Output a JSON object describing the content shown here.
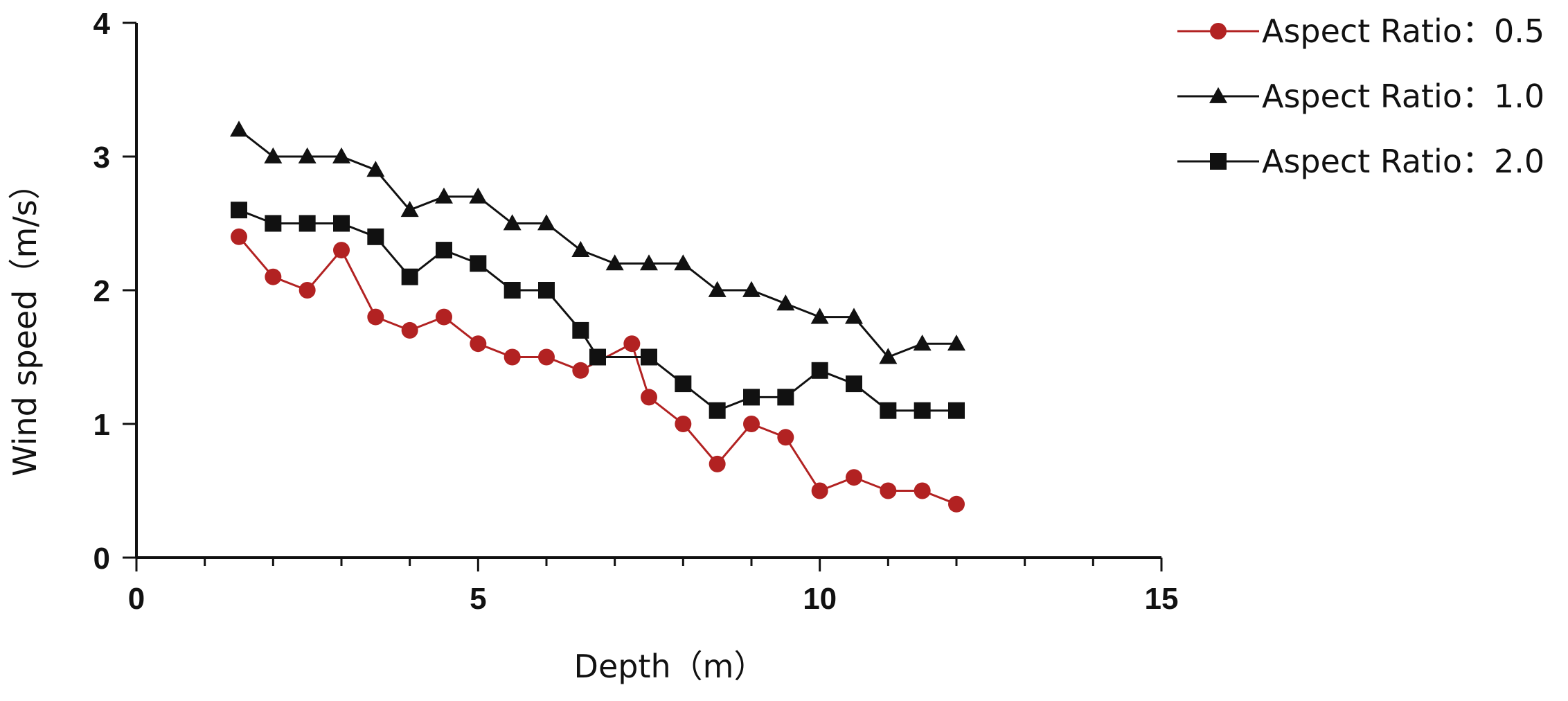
{
  "chart_data": {
    "type": "line",
    "title": "",
    "xlabel": "Depth（m）",
    "ylabel": "Wind speed（m/s）",
    "xlim": [
      0,
      15
    ],
    "ylim": [
      0,
      4
    ],
    "xticks": [
      0,
      5,
      10,
      15
    ],
    "yticks": [
      0,
      1,
      2,
      3,
      4
    ],
    "x_minor_step": 1,
    "grid": false,
    "legend_position": "top-right",
    "series": [
      {
        "name": "Aspect Ratio：0.5",
        "marker": "circle",
        "color": "#b22222",
        "x": [
          1.5,
          2,
          2.5,
          3,
          3.5,
          4,
          4.5,
          5,
          5.5,
          6,
          6.5,
          7.25,
          7.5,
          8,
          8.5,
          9,
          9.5,
          10,
          10.5,
          11,
          11.5,
          12
        ],
        "y": [
          2.4,
          2.1,
          2.0,
          2.3,
          1.8,
          1.7,
          1.8,
          1.6,
          1.5,
          1.5,
          1.4,
          1.6,
          1.2,
          1.0,
          0.7,
          1.0,
          0.9,
          0.5,
          0.6,
          0.5,
          0.5,
          0.4
        ]
      },
      {
        "name": "Aspect Ratio：1.0",
        "marker": "triangle",
        "color": "#111111",
        "x": [
          1.5,
          2,
          2.5,
          3,
          3.5,
          4,
          4.5,
          5,
          5.5,
          6,
          6.5,
          7,
          7.5,
          8,
          8.5,
          9,
          9.5,
          10,
          10.5,
          11,
          11.5,
          12
        ],
        "y": [
          3.2,
          3.0,
          3.0,
          3.0,
          2.9,
          2.6,
          2.7,
          2.7,
          2.5,
          2.5,
          2.3,
          2.2,
          2.2,
          2.2,
          2.0,
          2.0,
          1.9,
          1.8,
          1.8,
          1.5,
          1.6,
          1.6
        ]
      },
      {
        "name": "Aspect Ratio：2.0",
        "marker": "square",
        "color": "#111111",
        "x": [
          1.5,
          2,
          2.5,
          3,
          3.5,
          4,
          4.5,
          5,
          5.5,
          6,
          6.5,
          6.75,
          7.5,
          8,
          8.5,
          9,
          9.5,
          10,
          10.5,
          11,
          11.5,
          12
        ],
        "y": [
          2.6,
          2.5,
          2.5,
          2.5,
          2.4,
          2.1,
          2.3,
          2.2,
          2.0,
          2.0,
          1.7,
          1.5,
          1.5,
          1.3,
          1.1,
          1.2,
          1.2,
          1.4,
          1.3,
          1.1,
          1.1,
          1.1
        ]
      }
    ]
  }
}
